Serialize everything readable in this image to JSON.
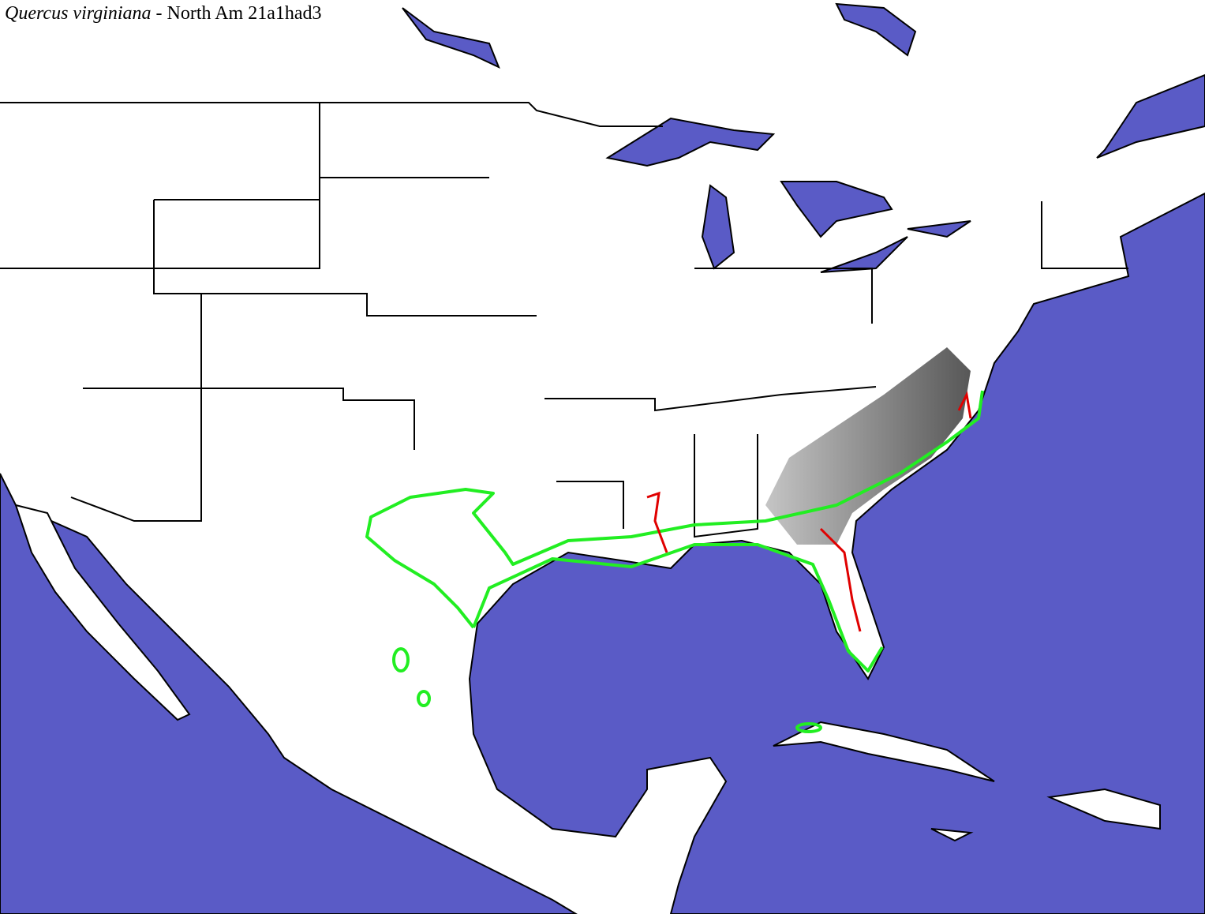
{
  "title": {
    "species": "Quercus virginiana",
    "suffix": "- North Am 21a1had3"
  }
}
